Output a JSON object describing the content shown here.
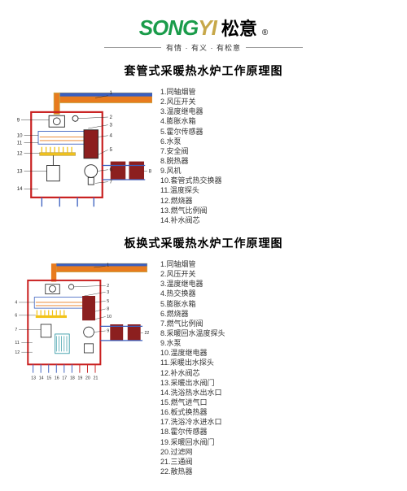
{
  "brand": {
    "en": "SONGYI",
    "en_color_primary": "#1a9c4a",
    "en_color_accent": "#c7a84a",
    "cn": "松意",
    "registered": "®",
    "tagline": "有情 · 有义 · 有松意"
  },
  "section1": {
    "title": "套管式采暖热水炉工作原理图",
    "legend": [
      "1.同轴烟管",
      "2.风压开关",
      "3.温度继电器",
      "4.膨胀水箱",
      "5.霍尔传感器",
      "6.水泵",
      "7.安全阀",
      "8.脱热器",
      "9.风机",
      "10.套管式热交换器",
      "11.温度探头",
      "12.燃烧器",
      "13.燃气比例阀",
      "14.补水阀芯"
    ],
    "callout_labels": [
      "1",
      "2",
      "3",
      "4",
      "5",
      "6",
      "7",
      "8",
      "9",
      "10",
      "11",
      "12",
      "13",
      "14"
    ]
  },
  "section2": {
    "title": "板换式采暖热水炉工作原理图",
    "legend": [
      "1.同轴烟管",
      "2.风压开关",
      "3.温度继电器",
      "4.热交换器",
      "5.膨胀水箱",
      "6.燃烧器",
      "7.燃气比例阀",
      "8.采暖回水温度探头",
      "9.水泵",
      "10.温度继电器",
      "11.采暖出水探头",
      "12.补水阀芯",
      "13.采暖出水阀门",
      "14.洗浴热水出水口",
      "15.燃气进气口",
      "16.板式换热器",
      "17.洗浴冷水进水口",
      "18.霍尔传感器",
      "19.采暖回水阀门",
      "20.过滤网",
      "21.三通阀",
      "22.散热器"
    ],
    "bottom_labels": [
      "13",
      "14",
      "15",
      "16",
      "17",
      "18",
      "19",
      "20",
      "21"
    ]
  },
  "colors": {
    "outline": "#c91f1f",
    "blue": "#3a5fbf",
    "orange": "#e87b1e",
    "yellow": "#f2c318",
    "teal": "#1f8f9c",
    "black": "#222",
    "dark_red": "#8c1f1f",
    "grey": "#888"
  }
}
